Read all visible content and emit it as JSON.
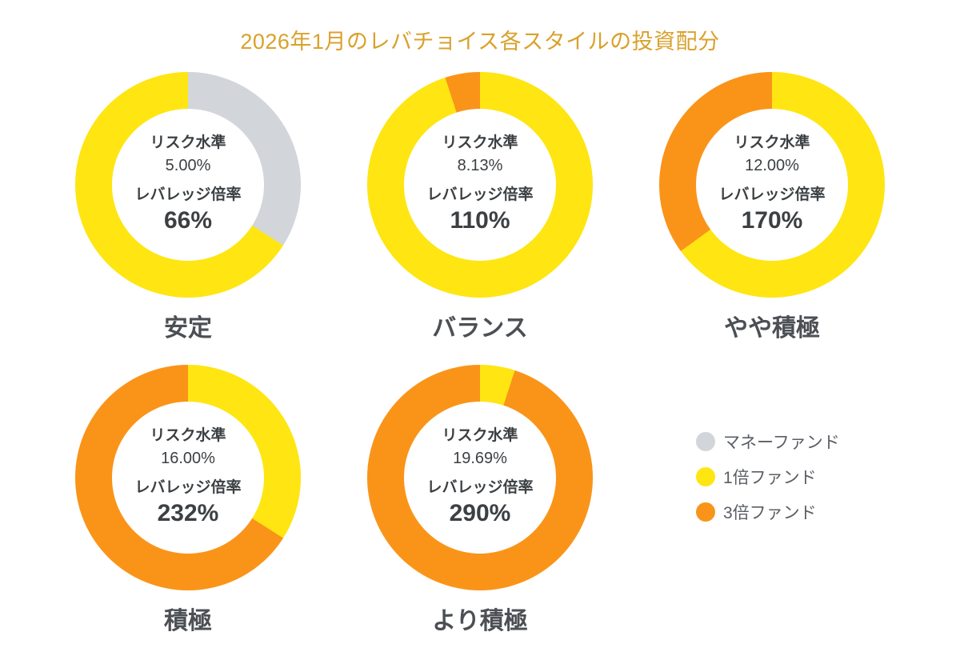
{
  "header": {
    "title": "2026年1月のレバチョイス各スタイルの投資配分"
  },
  "legend": {
    "position": "right",
    "items": [
      {
        "label": "マネーファンド",
        "color": "#D2D5DA"
      },
      {
        "label": "1倍ファンド",
        "color": "#FFE512"
      },
      {
        "label": "3倍ファンド",
        "color": "#FA9419"
      }
    ]
  },
  "chart_data": [
    {
      "type": "pie",
      "donut": true,
      "title": "安定",
      "center_text": {
        "risk_label": "リスク水準",
        "risk_value": "5.00%",
        "leverage_label": "レバレッジ倍率",
        "leverage_value": "66%"
      },
      "slices": [
        {
          "label": "マネーファンド",
          "percent": 34,
          "color": "#D2D5DA"
        },
        {
          "label": "1倍ファンド",
          "percent": 66,
          "color": "#FFE512"
        }
      ]
    },
    {
      "type": "pie",
      "donut": true,
      "title": "バランス",
      "center_text": {
        "risk_label": "リスク水準",
        "risk_value": "8.13%",
        "leverage_label": "レバレッジ倍率",
        "leverage_value": "110%"
      },
      "slices": [
        {
          "label": "1倍ファンド",
          "percent": 95,
          "color": "#FFE512"
        },
        {
          "label": "3倍ファンド",
          "percent": 5,
          "color": "#FA9419"
        }
      ]
    },
    {
      "type": "pie",
      "donut": true,
      "title": "やや積極",
      "center_text": {
        "risk_label": "リスク水準",
        "risk_value": "12.00%",
        "leverage_label": "レバレッジ倍率",
        "leverage_value": "170%"
      },
      "slices": [
        {
          "label": "1倍ファンド",
          "percent": 65,
          "color": "#FFE512"
        },
        {
          "label": "3倍ファンド",
          "percent": 35,
          "color": "#FA9419"
        }
      ]
    },
    {
      "type": "pie",
      "donut": true,
      "title": "積極",
      "center_text": {
        "risk_label": "リスク水準",
        "risk_value": "16.00%",
        "leverage_label": "レバレッジ倍率",
        "leverage_value": "232%"
      },
      "slices": [
        {
          "label": "1倍ファンド",
          "percent": 34,
          "color": "#FFE512"
        },
        {
          "label": "3倍ファンド",
          "percent": 66,
          "color": "#FA9419"
        }
      ]
    },
    {
      "type": "pie",
      "donut": true,
      "title": "より積極",
      "center_text": {
        "risk_label": "リスク水準",
        "risk_value": "19.69%",
        "leverage_label": "レバレッジ倍率",
        "leverage_value": "290%"
      },
      "slices": [
        {
          "label": "1倍ファンド",
          "percent": 5,
          "color": "#FFE512"
        },
        {
          "label": "3倍ファンド",
          "percent": 95,
          "color": "#FA9419"
        }
      ]
    }
  ]
}
